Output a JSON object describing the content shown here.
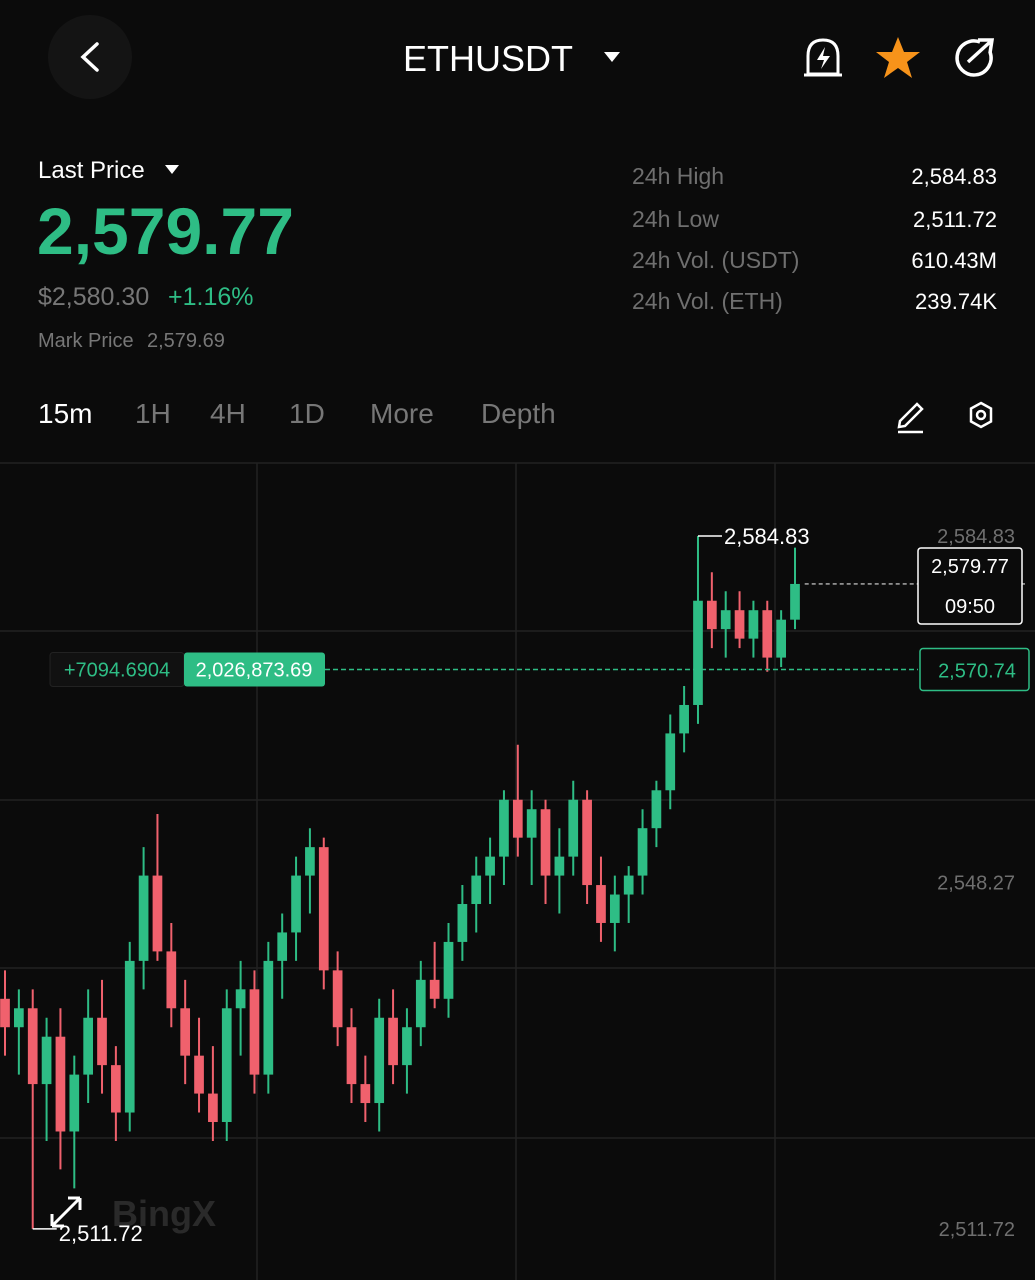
{
  "header": {
    "title": "ETHUSDT"
  },
  "price": {
    "label": "Last Price",
    "last": "2,579.77",
    "usd": "$2,580.30",
    "change": "+1.16%",
    "mark_label": "Mark Price",
    "mark": "2,579.69"
  },
  "stats": [
    {
      "label": "24h High",
      "value": "2,584.83"
    },
    {
      "label": "24h Low",
      "value": "2,511.72"
    },
    {
      "label": "24h Vol. (USDT)",
      "value": "610.43M"
    },
    {
      "label": "24h Vol. (ETH)",
      "value": "239.74K"
    }
  ],
  "tabs": [
    "15m",
    "1H",
    "4H",
    "1D",
    "More",
    "Depth"
  ],
  "chart_data": {
    "type": "candlestick",
    "watermark": "BingX",
    "ylim": [
      2506.33,
      2592.32
    ],
    "yticks": [
      {
        "value": 2584.83,
        "label": "2,584.83"
      },
      {
        "value": 2548.27,
        "label": "2,548.27"
      },
      {
        "value": 2511.72,
        "label": "2,511.72"
      }
    ],
    "up_color": "#2ebd85",
    "down_color": "#f0616d",
    "high": {
      "value": 2584.83,
      "label": "2,584.83"
    },
    "low": {
      "value": 2511.72,
      "label": "2,511.72"
    },
    "last": {
      "value": 2579.77,
      "label": "2,579.77",
      "time": "09:50"
    },
    "position": {
      "value": 2570.74,
      "label": "2,570.74",
      "pnl": "+7094.6904",
      "amount": "2,026,873.69"
    },
    "ohlc": [
      [
        2536,
        2539,
        2530,
        2533
      ],
      [
        2533,
        2537,
        2528,
        2535
      ],
      [
        2535,
        2537,
        2511.72,
        2527
      ],
      [
        2527,
        2534,
        2521,
        2532
      ],
      [
        2532,
        2535,
        2518,
        2522
      ],
      [
        2522,
        2530,
        2516,
        2528
      ],
      [
        2528,
        2537,
        2525,
        2534
      ],
      [
        2534,
        2538,
        2526,
        2529
      ],
      [
        2529,
        2531,
        2521,
        2524
      ],
      [
        2524,
        2542,
        2522,
        2540
      ],
      [
        2540,
        2552,
        2537,
        2549
      ],
      [
        2549,
        2555.5,
        2540,
        2541
      ],
      [
        2541,
        2544,
        2533,
        2535
      ],
      [
        2535,
        2538,
        2527,
        2530
      ],
      [
        2530,
        2534,
        2524,
        2526
      ],
      [
        2526,
        2531,
        2521,
        2523
      ],
      [
        2523,
        2537,
        2521,
        2535
      ],
      [
        2535,
        2540,
        2530,
        2537
      ],
      [
        2537,
        2539,
        2526,
        2528
      ],
      [
        2528,
        2542,
        2526,
        2540
      ],
      [
        2540,
        2545,
        2536,
        2543
      ],
      [
        2543,
        2551,
        2540,
        2549
      ],
      [
        2549,
        2554,
        2545,
        2552
      ],
      [
        2552,
        2553,
        2537,
        2539
      ],
      [
        2539,
        2541,
        2531,
        2533
      ],
      [
        2533,
        2535,
        2525,
        2527
      ],
      [
        2527,
        2530,
        2523,
        2525
      ],
      [
        2525,
        2536,
        2522,
        2534
      ],
      [
        2534,
        2537,
        2527,
        2529
      ],
      [
        2529,
        2535,
        2526,
        2533
      ],
      [
        2533,
        2540,
        2531,
        2538
      ],
      [
        2538,
        2542,
        2535,
        2536
      ],
      [
        2536,
        2544,
        2534,
        2542
      ],
      [
        2542,
        2548,
        2540,
        2546
      ],
      [
        2546,
        2551,
        2543,
        2549
      ],
      [
        2549,
        2553,
        2546,
        2551
      ],
      [
        2551,
        2558,
        2548,
        2557
      ],
      [
        2557,
        2562.8,
        2551,
        2553
      ],
      [
        2553,
        2558,
        2548,
        2556
      ],
      [
        2556,
        2557,
        2546,
        2549
      ],
      [
        2549,
        2554,
        2545,
        2551
      ],
      [
        2551,
        2559,
        2549,
        2557
      ],
      [
        2557,
        2558,
        2546,
        2548
      ],
      [
        2548,
        2551,
        2542,
        2544
      ],
      [
        2544,
        2549,
        2541,
        2547
      ],
      [
        2547,
        2550,
        2544,
        2549
      ],
      [
        2549,
        2556,
        2547,
        2554
      ],
      [
        2554,
        2559,
        2552,
        2558
      ],
      [
        2558,
        2566,
        2556,
        2564
      ],
      [
        2564,
        2569,
        2562,
        2567
      ],
      [
        2567,
        2584.83,
        2565,
        2578
      ],
      [
        2578,
        2581,
        2573,
        2575
      ],
      [
        2575,
        2579,
        2572,
        2577
      ],
      [
        2577,
        2579,
        2573,
        2574
      ],
      [
        2574,
        2578,
        2572,
        2577
      ],
      [
        2577,
        2578,
        2570.5,
        2572
      ],
      [
        2572,
        2577,
        2571,
        2576
      ],
      [
        2576,
        2583.6,
        2575,
        2579.77
      ]
    ]
  }
}
